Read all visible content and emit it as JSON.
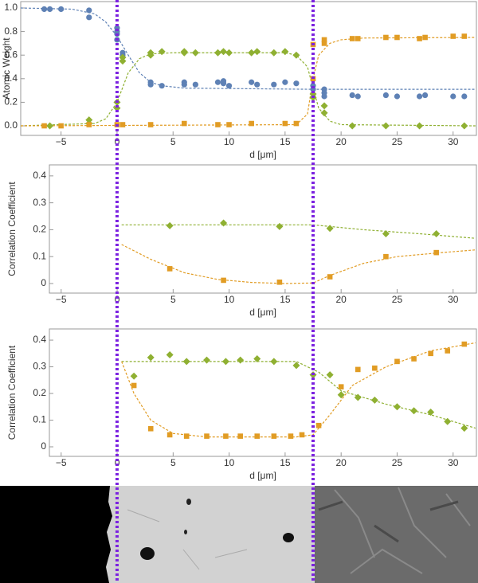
{
  "chart_data": [
    {
      "type": "scatter",
      "ylabel": "Atomic Weight",
      "xlabel": "d [μm]",
      "xlim": [
        -8.6,
        32.08
      ],
      "ylim": [
        -0.081,
        1.054
      ],
      "xticks": [
        {
          "value": -5,
          "label": "−5"
        },
        0,
        5,
        10,
        15,
        20,
        25,
        30
      ],
      "yticks": [
        {
          "value": 0,
          "label": "0.0"
        },
        {
          "value": 0.2,
          "label": "0.2"
        },
        {
          "value": 0.4,
          "label": "0.4"
        },
        {
          "value": 0.6,
          "label": "0.6"
        },
        {
          "value": 0.8,
          "label": "0.8"
        },
        {
          "value": 1,
          "label": "1.0"
        }
      ],
      "series": [
        {
          "style": "dashed",
          "color": "#5e81b5",
          "x": [
            -8.6,
            -4,
            -2,
            -1,
            0,
            1,
            2,
            3,
            4,
            6,
            17.5,
            32
          ],
          "values": [
            1.0,
            0.99,
            0.95,
            0.88,
            0.76,
            0.6,
            0.45,
            0.37,
            0.34,
            0.32,
            0.31,
            0.31
          ]
        },
        {
          "style": "dashed",
          "color": "#8fb032",
          "x": [
            -8.6,
            -2,
            -1,
            0,
            1,
            2,
            3,
            5,
            15,
            16,
            17,
            17.5,
            18,
            19,
            20,
            32
          ],
          "values": [
            0,
            0.02,
            0.06,
            0.2,
            0.45,
            0.57,
            0.61,
            0.62,
            0.62,
            0.6,
            0.5,
            0.32,
            0.15,
            0.04,
            0.01,
            0
          ]
        },
        {
          "style": "dashed",
          "color": "#e19c24",
          "x": [
            -8.6,
            16,
            17,
            17.5,
            18,
            19,
            20,
            22,
            32
          ],
          "values": [
            0,
            0.01,
            0.1,
            0.4,
            0.6,
            0.7,
            0.73,
            0.745,
            0.75
          ]
        },
        {
          "marker": "circle",
          "color": "#5e81b5",
          "x": [
            -6.5,
            -6,
            -5,
            -2.5,
            -2.5,
            0,
            0,
            0,
            0,
            0.5,
            0.5,
            3,
            3,
            4,
            6,
            6,
            7,
            9,
            9.5,
            9.5,
            10,
            12,
            12.5,
            14,
            15,
            16,
            17.5,
            17.5,
            18.5,
            18.5,
            18.5,
            21,
            21.5,
            24,
            25,
            27,
            27.5,
            30,
            31
          ],
          "values": [
            0.99,
            0.99,
            0.99,
            0.98,
            0.92,
            0.83,
            0.8,
            0.78,
            0.73,
            0.62,
            0.6,
            0.37,
            0.35,
            0.34,
            0.37,
            0.35,
            0.35,
            0.37,
            0.36,
            0.38,
            0.34,
            0.37,
            0.35,
            0.35,
            0.37,
            0.36,
            0.34,
            0.31,
            0.31,
            0.28,
            0.25,
            0.26,
            0.25,
            0.26,
            0.25,
            0.25,
            0.26,
            0.25,
            0.25
          ]
        },
        {
          "marker": "diamond",
          "color": "#8fb032",
          "x": [
            -6,
            -2.5,
            -2.5,
            0,
            0,
            0.5,
            0.5,
            3,
            3,
            4,
            6,
            6,
            7,
            9,
            9.5,
            10,
            12,
            12.5,
            14,
            15,
            16,
            17.5,
            17.5,
            18.5,
            18.5,
            21,
            24,
            27,
            31
          ],
          "values": [
            0,
            0.05,
            0.02,
            0.2,
            0.15,
            0.58,
            0.55,
            0.62,
            0.6,
            0.63,
            0.63,
            0.62,
            0.62,
            0.62,
            0.63,
            0.62,
            0.62,
            0.63,
            0.62,
            0.63,
            0.6,
            0.27,
            0.24,
            0.17,
            0.11,
            0,
            0,
            0,
            0
          ]
        },
        {
          "marker": "square",
          "color": "#e19c24",
          "x": [
            -6.5,
            -5,
            -2.5,
            0,
            0.5,
            3,
            6,
            9,
            10,
            12,
            15,
            16,
            17.5,
            17.5,
            18.5,
            18.5,
            21,
            21.5,
            24,
            25,
            27,
            27.5,
            30,
            31
          ],
          "values": [
            0,
            0,
            0.01,
            0.01,
            0.01,
            0.01,
            0.02,
            0.01,
            0.01,
            0.02,
            0.02,
            0.02,
            0.4,
            0.69,
            0.7,
            0.73,
            0.74,
            0.74,
            0.75,
            0.75,
            0.74,
            0.75,
            0.76,
            0.76
          ]
        }
      ]
    },
    {
      "type": "scatter",
      "ylabel": "Correlation Coefficient",
      "xlabel": "d [μm]",
      "xlim": [
        -6.05,
        32.08
      ],
      "ylim": [
        -0.0356,
        0.441
      ],
      "xticks": [
        {
          "value": -5,
          "label": "−5"
        },
        0,
        5,
        10,
        15,
        20,
        25,
        30
      ],
      "yticks": [
        0,
        0.1,
        0.2,
        0.3,
        0.4
      ],
      "series": [
        {
          "style": "dashed",
          "color": "#8fb032",
          "x": [
            0.4,
            17.5,
            22,
            27,
            32
          ],
          "values": [
            0.218,
            0.218,
            0.2,
            0.185,
            0.168
          ]
        },
        {
          "style": "dashed",
          "color": "#e19c24",
          "x": [
            0.4,
            3,
            6,
            9,
            12,
            15,
            17.5,
            19,
            22,
            25,
            29,
            32
          ],
          "values": [
            0.145,
            0.09,
            0.04,
            0.015,
            0.004,
            0,
            0.002,
            0.03,
            0.075,
            0.1,
            0.115,
            0.125
          ]
        },
        {
          "marker": "diamond",
          "color": "#8fb032",
          "x": [
            4.7,
            9.5,
            14.5,
            19,
            24,
            28.5
          ],
          "values": [
            0.215,
            0.225,
            0.212,
            0.205,
            0.185,
            0.185
          ]
        },
        {
          "marker": "square",
          "color": "#e19c24",
          "x": [
            4.7,
            9.5,
            14.5,
            19,
            24,
            28.5
          ],
          "values": [
            0.055,
            0.012,
            0.005,
            0.025,
            0.1,
            0.115
          ]
        }
      ]
    },
    {
      "type": "scatter",
      "ylabel": "Correlation Coefficient",
      "xlabel": "d [μm]",
      "xlim": [
        -6.05,
        32.08
      ],
      "ylim": [
        -0.0358,
        0.442
      ],
      "xticks": [
        {
          "value": -5,
          "label": "−5"
        },
        0,
        5,
        10,
        15,
        20,
        25,
        30
      ],
      "yticks": [
        0,
        0.1,
        0.2,
        0.3,
        0.4
      ],
      "series": [
        {
          "style": "dashed",
          "color": "#8fb032",
          "x": [
            0.4,
            16,
            18,
            20,
            24,
            28,
            32
          ],
          "values": [
            0.32,
            0.32,
            0.28,
            0.21,
            0.16,
            0.12,
            0.07
          ]
        },
        {
          "style": "dashed",
          "color": "#e19c24",
          "x": [
            0.4,
            1.5,
            3,
            5,
            8,
            16,
            17.5,
            19,
            21,
            24,
            28,
            32
          ],
          "values": [
            0.32,
            0.2,
            0.1,
            0.05,
            0.037,
            0.037,
            0.045,
            0.12,
            0.23,
            0.3,
            0.36,
            0.39
          ]
        },
        {
          "marker": "diamond",
          "color": "#8fb032",
          "x": [
            1.5,
            3,
            4.7,
            6.2,
            8,
            9.7,
            11,
            12.5,
            14,
            16,
            17.5,
            19,
            20,
            21.5,
            23,
            25,
            26.5,
            28,
            29.5,
            31
          ],
          "values": [
            0.265,
            0.335,
            0.345,
            0.32,
            0.325,
            0.32,
            0.325,
            0.33,
            0.32,
            0.305,
            0.27,
            0.27,
            0.195,
            0.185,
            0.175,
            0.15,
            0.135,
            0.13,
            0.095,
            0.07
          ]
        },
        {
          "marker": "square",
          "color": "#e19c24",
          "x": [
            1.5,
            3,
            4.7,
            6.2,
            8,
            9.7,
            11,
            12.5,
            14,
            15.5,
            16.5,
            18,
            20,
            21.5,
            23,
            25,
            26.5,
            28,
            29.5,
            31
          ],
          "values": [
            0.23,
            0.068,
            0.045,
            0.04,
            0.04,
            0.04,
            0.04,
            0.04,
            0.04,
            0.04,
            0.045,
            0.08,
            0.225,
            0.29,
            0.295,
            0.32,
            0.33,
            0.35,
            0.36,
            0.385
          ]
        }
      ]
    }
  ],
  "interfaces": {
    "values": [
      0,
      17.5
    ],
    "color": "#7b22e0"
  }
}
